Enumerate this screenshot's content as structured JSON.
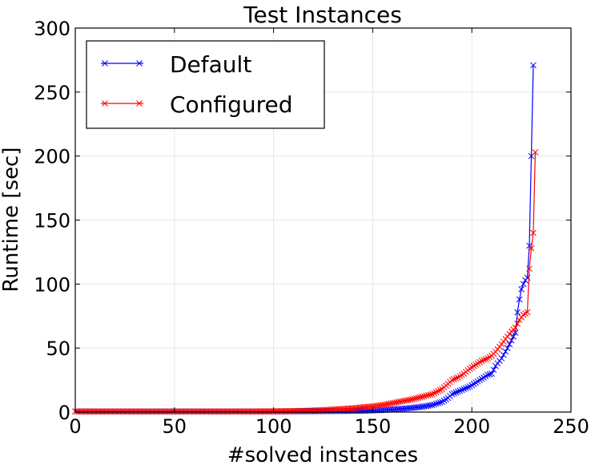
{
  "chart_data": {
    "type": "line",
    "title": "Test Instances",
    "xlabel": "#solved instances",
    "ylabel": "Runtime [sec]",
    "xlim": [
      0,
      250
    ],
    "ylim": [
      0,
      300
    ],
    "xticks": [
      0,
      50,
      100,
      150,
      200,
      250
    ],
    "yticks": [
      0,
      50,
      100,
      150,
      200,
      250,
      300
    ],
    "xtick_labels": [
      "0",
      "50",
      "100",
      "150",
      "200",
      "250"
    ],
    "ytick_labels": [
      "0",
      "50",
      "100",
      "150",
      "200",
      "250",
      "300"
    ],
    "grid": true,
    "legend_position": "top-left",
    "series": [
      {
        "name": "Default",
        "color": "#0000ff",
        "marker": "x",
        "points": [
          [
            0,
            0.5
          ],
          [
            10,
            0.5
          ],
          [
            20,
            0.5
          ],
          [
            30,
            0.5
          ],
          [
            40,
            0.5
          ],
          [
            50,
            0.5
          ],
          [
            60,
            0.5
          ],
          [
            70,
            0.5
          ],
          [
            80,
            0.5
          ],
          [
            90,
            0.5
          ],
          [
            100,
            0.5
          ],
          [
            110,
            0.6
          ],
          [
            120,
            0.7
          ],
          [
            130,
            0.8
          ],
          [
            140,
            0.9
          ],
          [
            145,
            1.0
          ],
          [
            150,
            1.3
          ],
          [
            155,
            1.6
          ],
          [
            160,
            2.0
          ],
          [
            165,
            2.6
          ],
          [
            170,
            3.3
          ],
          [
            175,
            4.2
          ],
          [
            180,
            5.5
          ],
          [
            185,
            8.0
          ],
          [
            188,
            11
          ],
          [
            190,
            14
          ],
          [
            193,
            16
          ],
          [
            196,
            18
          ],
          [
            199,
            20
          ],
          [
            202,
            23
          ],
          [
            205,
            26
          ],
          [
            208,
            29
          ],
          [
            210,
            30
          ],
          [
            212,
            36
          ],
          [
            215,
            42
          ],
          [
            218,
            50
          ],
          [
            220,
            56
          ],
          [
            222,
            62
          ],
          [
            223,
            78
          ],
          [
            224,
            88
          ],
          [
            225,
            96
          ],
          [
            226,
            100
          ],
          [
            227,
            103
          ],
          [
            228,
            105
          ],
          [
            229,
            130
          ],
          [
            230,
            200
          ],
          [
            231,
            271
          ]
        ]
      },
      {
        "name": "Configured",
        "color": "#ff0000",
        "marker": "x",
        "points": [
          [
            0,
            0.5
          ],
          [
            10,
            0.5
          ],
          [
            20,
            0.5
          ],
          [
            30,
            0.5
          ],
          [
            40,
            0.5
          ],
          [
            50,
            0.5
          ],
          [
            60,
            0.5
          ],
          [
            70,
            0.5
          ],
          [
            80,
            0.5
          ],
          [
            90,
            0.5
          ],
          [
            100,
            0.6
          ],
          [
            110,
            0.8
          ],
          [
            120,
            1.2
          ],
          [
            130,
            2.0
          ],
          [
            140,
            3.0
          ],
          [
            150,
            4.5
          ],
          [
            155,
            5.5
          ],
          [
            160,
            7.0
          ],
          [
            165,
            8.5
          ],
          [
            170,
            10
          ],
          [
            175,
            12
          ],
          [
            180,
            14
          ],
          [
            185,
            18
          ],
          [
            188,
            22
          ],
          [
            190,
            25
          ],
          [
            193,
            27
          ],
          [
            196,
            30
          ],
          [
            199,
            34
          ],
          [
            202,
            37
          ],
          [
            205,
            40
          ],
          [
            208,
            42
          ],
          [
            210,
            44
          ],
          [
            212,
            47
          ],
          [
            214,
            51
          ],
          [
            216,
            55
          ],
          [
            218,
            59
          ],
          [
            220,
            63
          ],
          [
            222,
            66
          ],
          [
            224,
            72
          ],
          [
            226,
            76
          ],
          [
            228,
            78
          ],
          [
            229,
            112
          ],
          [
            230,
            128
          ],
          [
            231,
            140
          ],
          [
            232,
            203
          ]
        ]
      }
    ]
  }
}
